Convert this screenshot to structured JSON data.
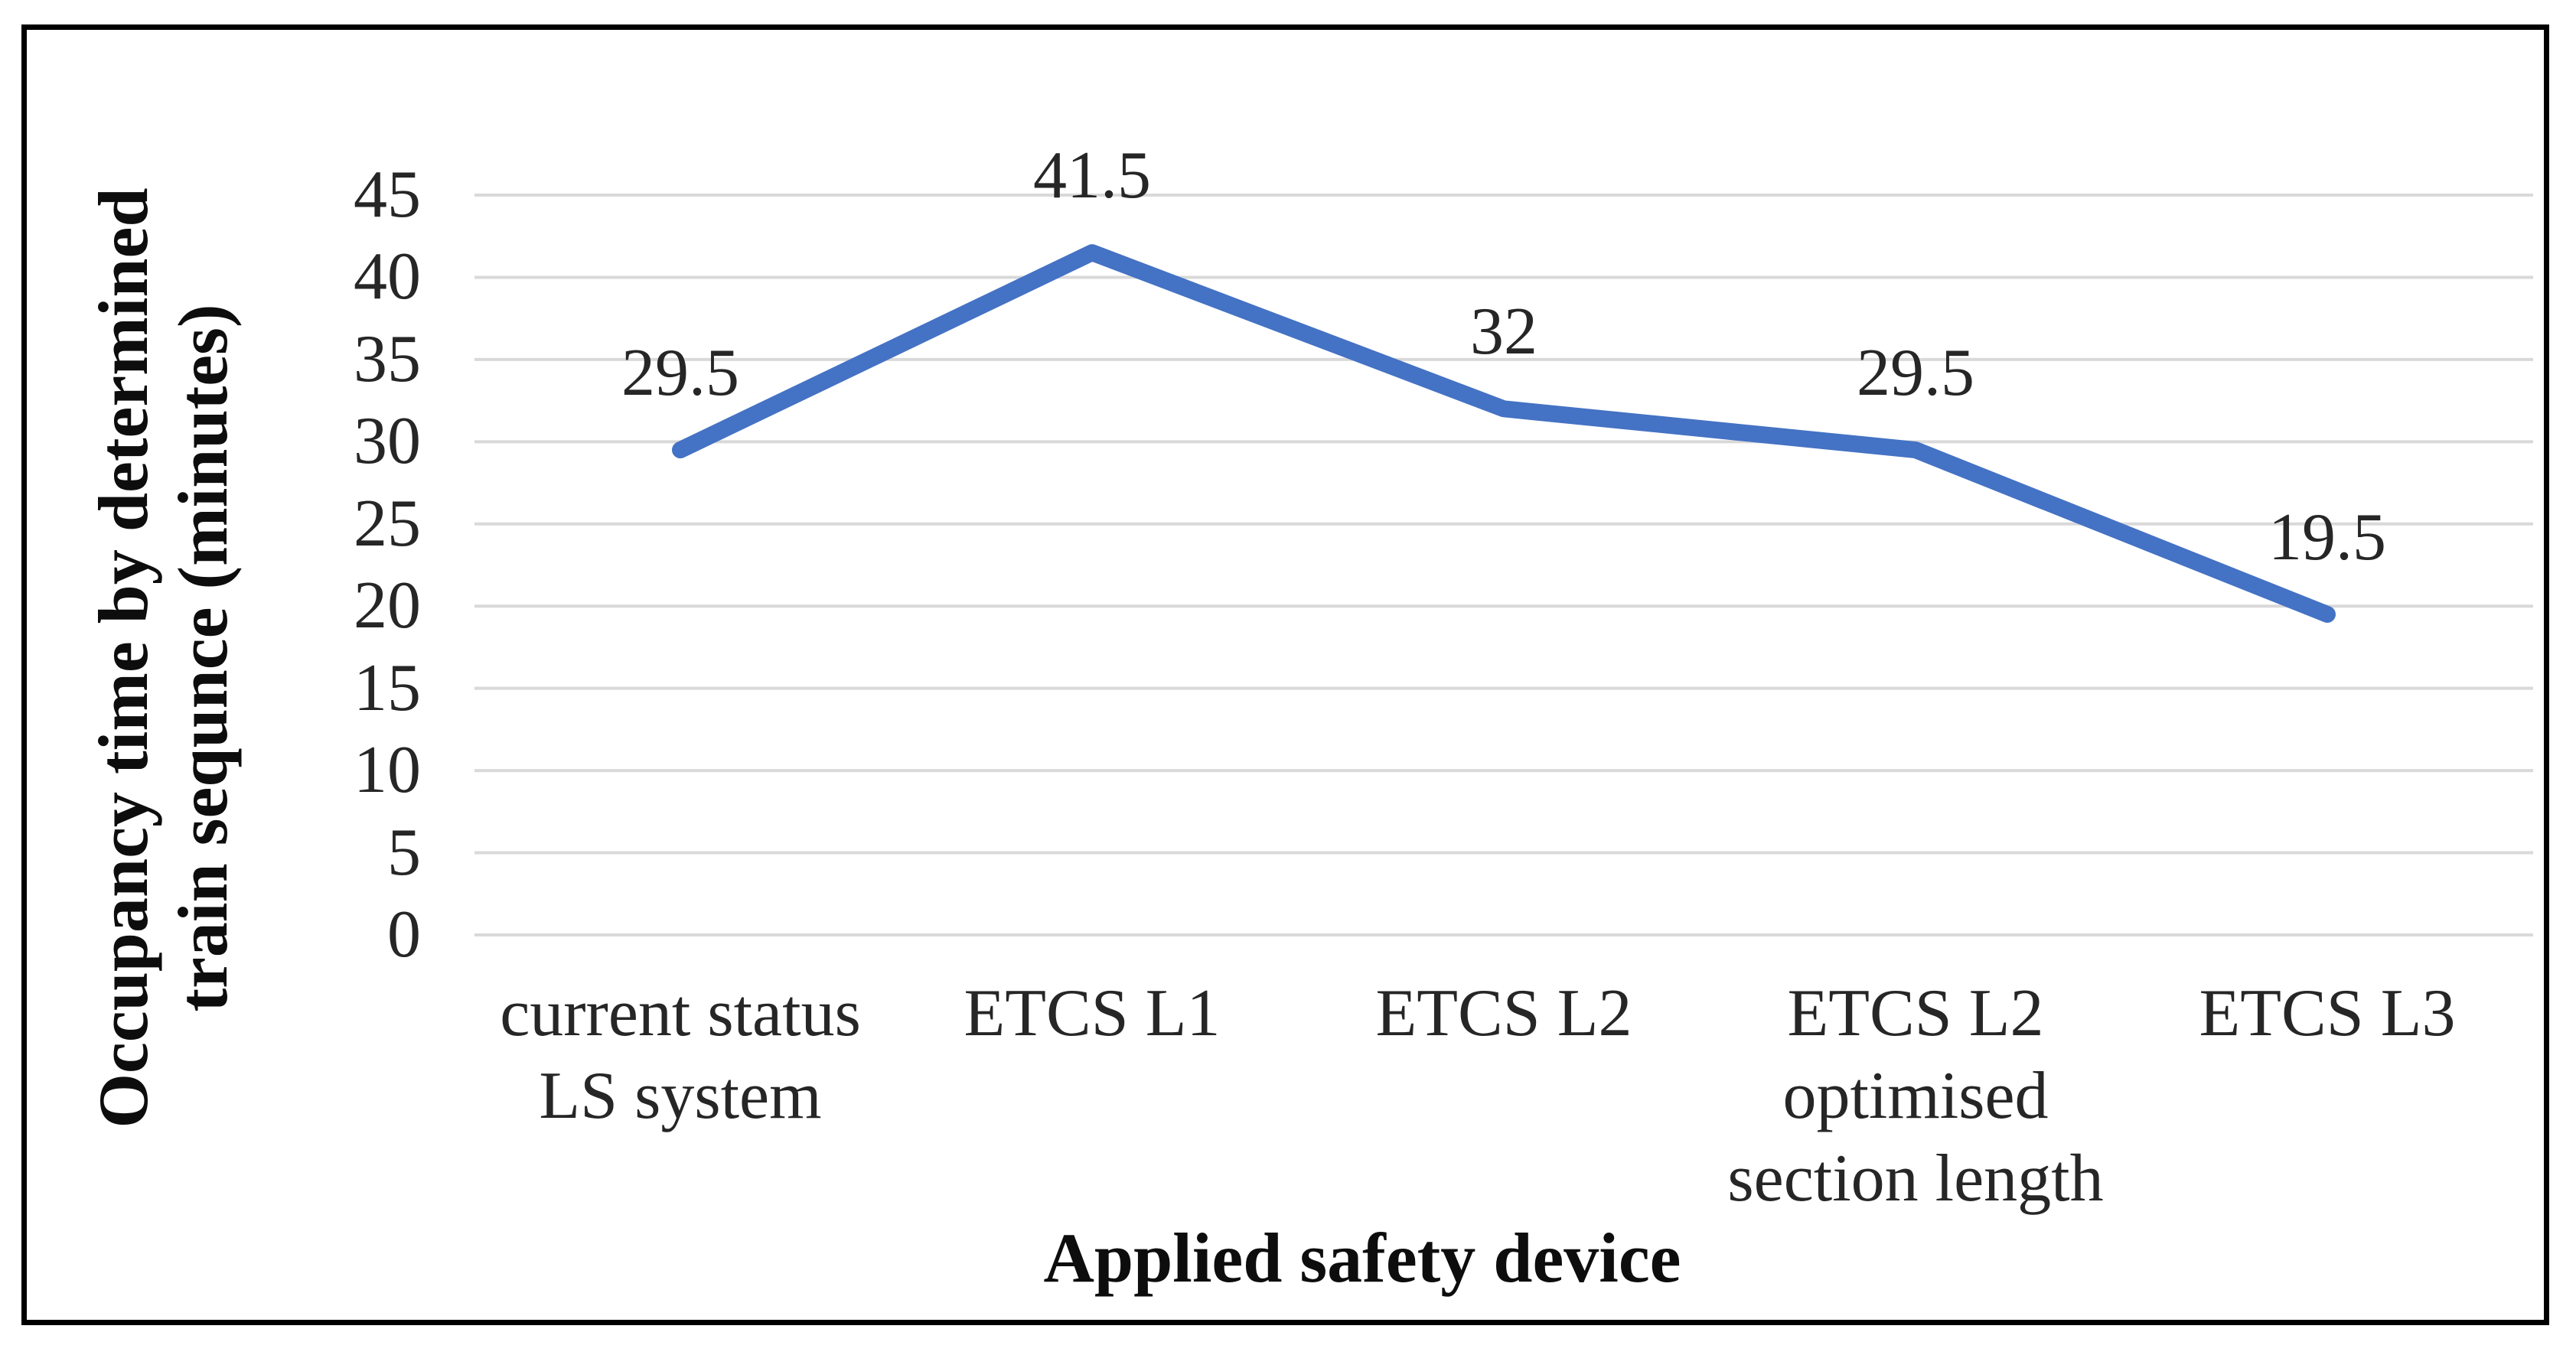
{
  "chart_data": {
    "type": "line",
    "title": "",
    "xlabel": "Applied safety device",
    "ylabel": "Occupancy time by determined train sequnce (minutes)",
    "ylabel_lines": [
      "Occupancy time by determined",
      "train sequnce (minutes)"
    ],
    "categories": [
      "current status LS system",
      "ETCS L1",
      "ETCS L2",
      "ETCS L2 optimised section length",
      "ETCS L3"
    ],
    "categories_wrapped": [
      [
        "current status",
        "LS system"
      ],
      [
        "ETCS L1"
      ],
      [
        "ETCS L2"
      ],
      [
        "ETCS L2",
        "optimised",
        "section length"
      ],
      [
        "ETCS L3"
      ]
    ],
    "values": [
      29.5,
      41.5,
      32,
      29.5,
      19.5
    ],
    "data_labels": [
      "29.5",
      "41.5",
      "32",
      "29.5",
      "19.5"
    ],
    "y_ticks": [
      45,
      40,
      35,
      30,
      25,
      20,
      15,
      10,
      5,
      0
    ],
    "ylim": [
      0,
      45
    ],
    "grid": true,
    "legend": false,
    "line_color": "#4472C4",
    "gridline_color": "#D9D9D9",
    "text_color": "#262626",
    "frame_color": "#000000"
  }
}
